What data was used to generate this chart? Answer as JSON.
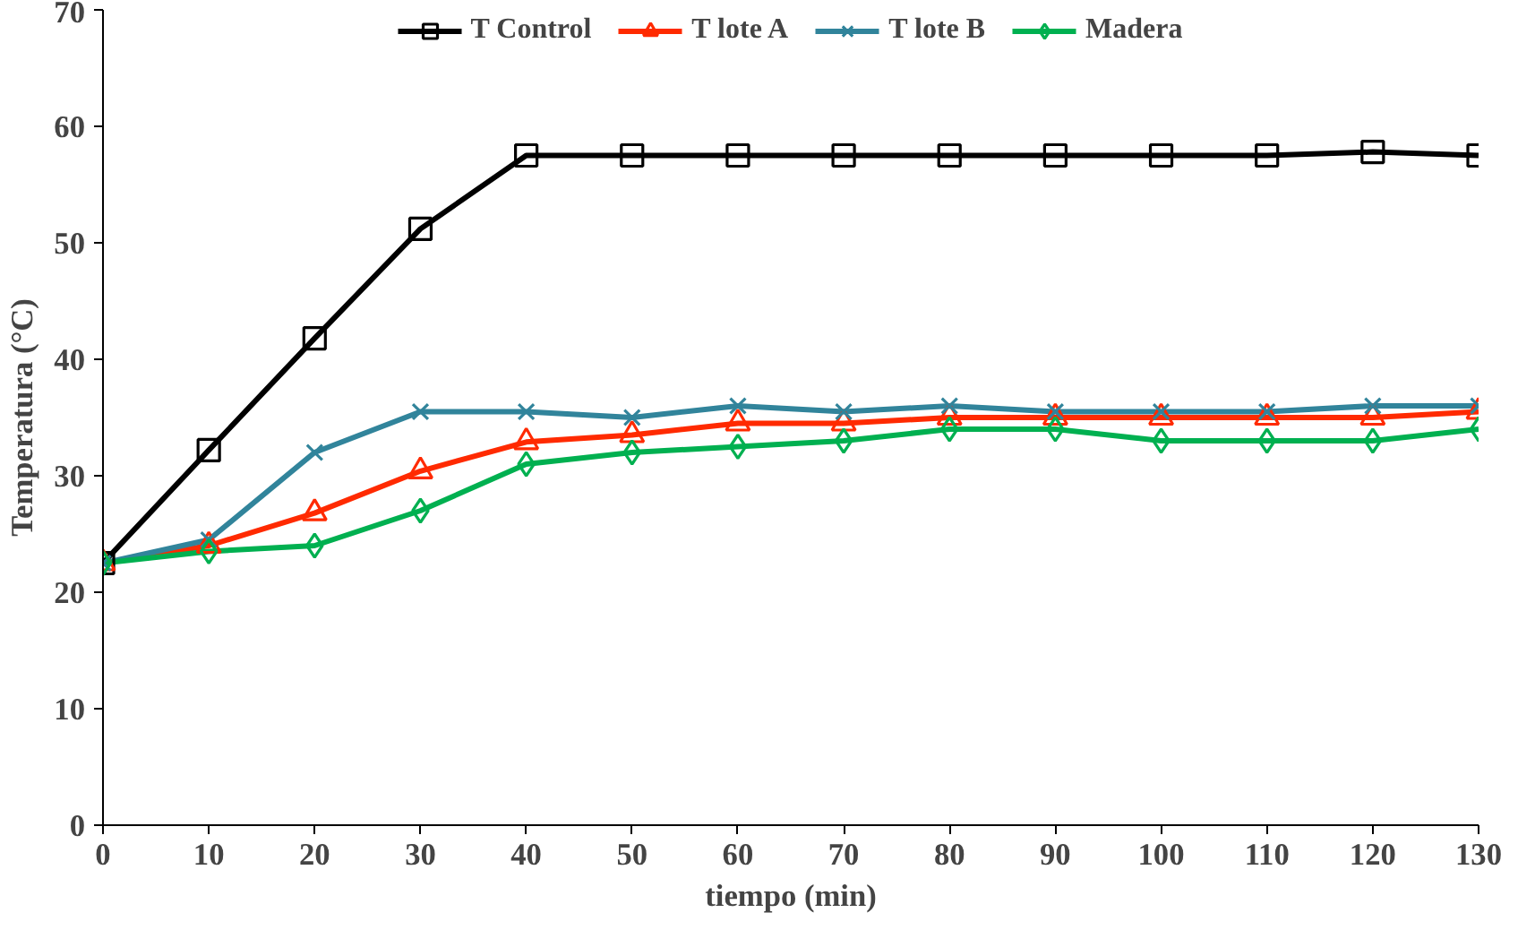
{
  "chart_data": {
    "type": "line",
    "xlabel": "tiempo (min)",
    "ylabel": "Temperatura (°C)",
    "x": [
      0,
      10,
      20,
      30,
      40,
      50,
      60,
      70,
      80,
      90,
      100,
      110,
      120,
      130
    ],
    "xlim": [
      0,
      130
    ],
    "xticks": [
      0,
      10,
      20,
      30,
      40,
      50,
      60,
      70,
      80,
      90,
      100,
      110,
      120,
      130
    ],
    "ylim": [
      0,
      70
    ],
    "yticks": [
      0,
      10,
      20,
      30,
      40,
      50,
      60,
      70
    ],
    "grid": false,
    "legend": "top",
    "line_style": "solid",
    "series": [
      {
        "name": "T Control",
        "color": "#000000",
        "marker": "square",
        "values": [
          22.5,
          32.2,
          41.8,
          51.2,
          57.5,
          57.5,
          57.5,
          57.5,
          57.5,
          57.5,
          57.5,
          57.5,
          57.8,
          57.5
        ]
      },
      {
        "name": "T lote A",
        "color": "#ff2a00",
        "marker": "triangle",
        "values": [
          22.5,
          24.0,
          26.8,
          30.4,
          32.9,
          33.5,
          34.5,
          34.5,
          35.0,
          35.0,
          35.0,
          35.0,
          35.0,
          35.5
        ]
      },
      {
        "name": "T lote B",
        "color": "#31849b",
        "marker": "cross",
        "values": [
          22.5,
          24.5,
          32.0,
          35.5,
          35.5,
          35.0,
          36.0,
          35.5,
          36.0,
          35.5,
          35.5,
          35.5,
          36.0,
          36.0
        ]
      },
      {
        "name": "Madera",
        "color": "#00b050",
        "marker": "diamond",
        "values": [
          22.5,
          23.5,
          24.0,
          27.0,
          31.0,
          32.0,
          32.5,
          33.0,
          34.0,
          34.0,
          33.0,
          33.0,
          33.0,
          34.0
        ]
      }
    ]
  }
}
